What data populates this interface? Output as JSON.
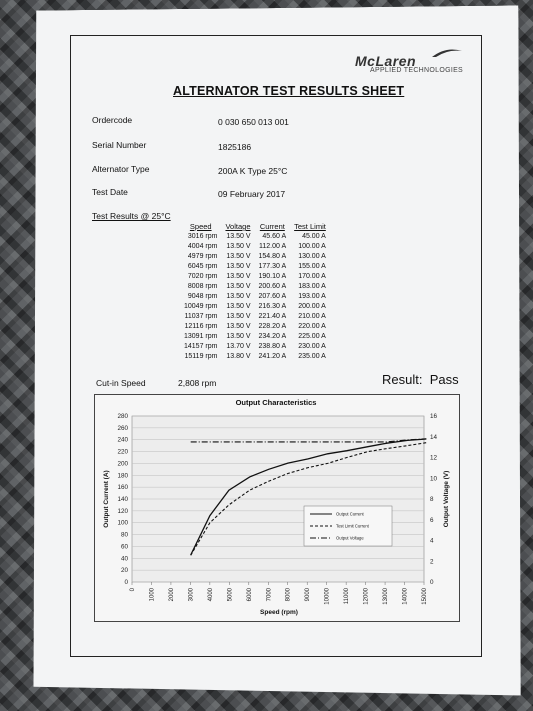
{
  "brand": {
    "name": "McLaren",
    "subtitle": "APPLIED TECHNOLOGIES"
  },
  "title": "ALTERNATOR TEST RESULTS SHEET",
  "fields": [
    {
      "label": "Ordercode",
      "value": "0 030 650 013 001"
    },
    {
      "label": "Serial Number",
      "value": "1825186"
    },
    {
      "label": "Alternator Type",
      "value": "200A K Type 25°C"
    },
    {
      "label": "Test Date",
      "value": "09 February 2017"
    }
  ],
  "results_heading": "Test Results @ 25°C",
  "table": {
    "headers": [
      "Speed",
      "Voltage",
      "Current",
      "Test Limit"
    ],
    "rows": [
      [
        "3016 rpm",
        "13.50 V",
        "45.60 A",
        "45.00 A"
      ],
      [
        "4004 rpm",
        "13.50 V",
        "112.00 A",
        "100.00 A"
      ],
      [
        "4979 rpm",
        "13.50 V",
        "154.80 A",
        "130.00 A"
      ],
      [
        "6045 rpm",
        "13.50 V",
        "177.30 A",
        "155.00 A"
      ],
      [
        "7020 rpm",
        "13.50 V",
        "190.10 A",
        "170.00 A"
      ],
      [
        "8008 rpm",
        "13.50 V",
        "200.60 A",
        "183.00 A"
      ],
      [
        "9048 rpm",
        "13.50 V",
        "207.60 A",
        "193.00 A"
      ],
      [
        "10049 rpm",
        "13.50 V",
        "216.30 A",
        "200.00 A"
      ],
      [
        "11037 rpm",
        "13.50 V",
        "221.40 A",
        "210.00 A"
      ],
      [
        "12116 rpm",
        "13.50 V",
        "228.20 A",
        "220.00 A"
      ],
      [
        "13091 rpm",
        "13.50 V",
        "234.20 A",
        "225.00 A"
      ],
      [
        "14157 rpm",
        "13.70 V",
        "238.80 A",
        "230.00 A"
      ],
      [
        "15119 rpm",
        "13.80 V",
        "241.20 A",
        "235.00 A"
      ]
    ]
  },
  "cut_in": {
    "label": "Cut-in Speed",
    "value": "2,808 rpm"
  },
  "result": {
    "label": "Result:",
    "value": "Pass"
  },
  "chart_data": {
    "type": "line",
    "title": "Output Characteristics",
    "xlabel": "Speed (rpm)",
    "ylabel": "Output Current (A)",
    "y2label": "Output Voltage (V)",
    "xlim": [
      0,
      15000
    ],
    "ylim": [
      0,
      280
    ],
    "y2lim": [
      0,
      16
    ],
    "xticks": [
      "0",
      "1000",
      "2000",
      "3000",
      "4000",
      "5000",
      "6000",
      "7000",
      "8000",
      "9000",
      "10000",
      "11000",
      "12000",
      "13000",
      "14000",
      "15000"
    ],
    "yticks": [
      "0",
      "20",
      "40",
      "60",
      "80",
      "100",
      "120",
      "140",
      "160",
      "180",
      "200",
      "220",
      "240",
      "260",
      "280"
    ],
    "y2ticks": [
      "0",
      "2",
      "4",
      "6",
      "8",
      "10",
      "12",
      "14",
      "16"
    ],
    "grid": true,
    "legend_position": "center-right",
    "series": [
      {
        "name": "Output Current",
        "axis": "left",
        "style": "solid",
        "x": [
          3016,
          4004,
          4979,
          6045,
          7020,
          8008,
          9048,
          10049,
          11037,
          12116,
          13091,
          14157,
          15119
        ],
        "values": [
          45.6,
          112.0,
          154.8,
          177.3,
          190.1,
          200.6,
          207.6,
          216.3,
          221.4,
          228.2,
          234.2,
          238.8,
          241.2
        ]
      },
      {
        "name": "Test Limit Current",
        "axis": "left",
        "style": "dashed",
        "x": [
          3016,
          4004,
          4979,
          6045,
          7020,
          8008,
          9048,
          10049,
          11037,
          12116,
          13091,
          14157,
          15119
        ],
        "values": [
          45.0,
          100.0,
          130.0,
          155.0,
          170.0,
          183.0,
          193.0,
          200.0,
          210.0,
          220.0,
          225.0,
          230.0,
          235.0
        ]
      },
      {
        "name": "Output Voltage",
        "axis": "right",
        "style": "dashdot",
        "x": [
          3016,
          4004,
          4979,
          6045,
          7020,
          8008,
          9048,
          10049,
          11037,
          12116,
          13091,
          14157,
          15119
        ],
        "values": [
          13.5,
          13.5,
          13.5,
          13.5,
          13.5,
          13.5,
          13.5,
          13.5,
          13.5,
          13.5,
          13.5,
          13.7,
          13.8
        ]
      }
    ]
  }
}
